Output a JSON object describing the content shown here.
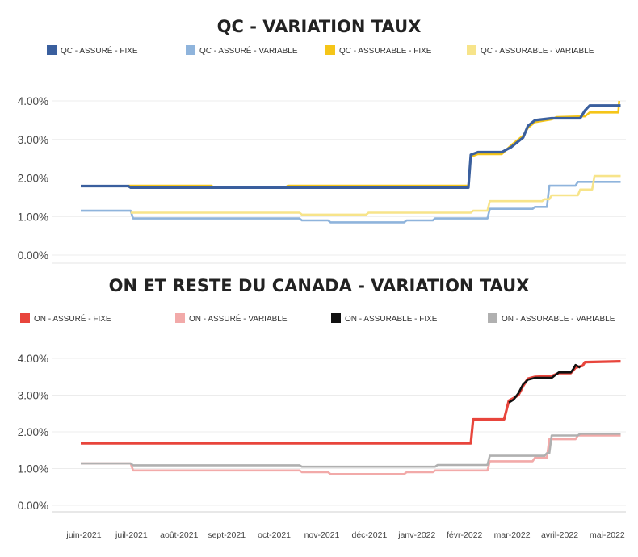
{
  "chart_data": [
    {
      "type": "line",
      "title": "QC - VARIATION TAUX",
      "xlabel": "",
      "ylabel": "",
      "ylim": [
        0,
        4.1
      ],
      "yticks": [
        "0.00%",
        "1.00%",
        "2.00%",
        "3.00%",
        "4.00%"
      ],
      "ytick_values": [
        0,
        1,
        2,
        3,
        4
      ],
      "xtick_labels": [
        "juin-2021",
        "juil-2021",
        "août-2021",
        "sept-2021",
        "oct-2021",
        "nov-2021",
        "déc-2021",
        "janv-2022",
        "févr-2022",
        "mar-2022",
        "avril-2022",
        "mai-2022"
      ],
      "grid": true,
      "legend_position": "top",
      "series": [
        {
          "name": "QC - ASSURÉ - FIXE",
          "color": "#3a5f9e",
          "points": [
            [
              0,
              1.79
            ],
            [
              1,
              1.79
            ],
            [
              1.05,
              1.75
            ],
            [
              8.15,
              1.75
            ],
            [
              8.2,
              2.6
            ],
            [
              8.35,
              2.67
            ],
            [
              8.85,
              2.67
            ],
            [
              9.05,
              2.8
            ],
            [
              9.15,
              2.9
            ],
            [
              9.3,
              3.05
            ],
            [
              9.4,
              3.35
            ],
            [
              9.55,
              3.5
            ],
            [
              9.9,
              3.55
            ],
            [
              10.5,
              3.55
            ],
            [
              10.6,
              3.75
            ],
            [
              10.7,
              3.88
            ],
            [
              11.35,
              3.88
            ]
          ]
        },
        {
          "name": "QC - ASSURÉ - VARIABLE",
          "color": "#8fb4dc",
          "points": [
            [
              0,
              1.15
            ],
            [
              1.05,
              1.15
            ],
            [
              1.1,
              0.95
            ],
            [
              4.6,
              0.95
            ],
            [
              4.65,
              0.9
            ],
            [
              5.2,
              0.9
            ],
            [
              5.25,
              0.85
            ],
            [
              6.8,
              0.85
            ],
            [
              6.85,
              0.9
            ],
            [
              7.4,
              0.9
            ],
            [
              7.45,
              0.95
            ],
            [
              8.55,
              0.95
            ],
            [
              8.6,
              1.2
            ],
            [
              9.5,
              1.2
            ],
            [
              9.55,
              1.25
            ],
            [
              9.8,
              1.25
            ],
            [
              9.85,
              1.8
            ],
            [
              10.4,
              1.8
            ],
            [
              10.45,
              1.9
            ],
            [
              11.35,
              1.9
            ]
          ]
        },
        {
          "name": "QC - ASSURABLE - FIXE",
          "color": "#f5c518",
          "points": [
            [
              1,
              1.8
            ],
            [
              2.75,
              1.8
            ],
            [
              2.8,
              1.75
            ],
            [
              4.3,
              1.75
            ],
            [
              4.35,
              1.8
            ],
            [
              8.15,
              1.8
            ],
            [
              8.2,
              2.55
            ],
            [
              8.35,
              2.62
            ],
            [
              8.85,
              2.62
            ],
            [
              9.05,
              2.85
            ],
            [
              9.3,
              3.1
            ],
            [
              9.4,
              3.3
            ],
            [
              9.55,
              3.45
            ],
            [
              9.9,
              3.52
            ],
            [
              10.0,
              3.58
            ],
            [
              10.6,
              3.6
            ],
            [
              10.7,
              3.7
            ],
            [
              11.3,
              3.7
            ],
            [
              11.32,
              4.0
            ]
          ]
        },
        {
          "name": "QC - ASSURABLE - VARIABLE",
          "color": "#f7e48a",
          "points": [
            [
              1.05,
              1.1
            ],
            [
              4.6,
              1.1
            ],
            [
              4.65,
              1.05
            ],
            [
              6.0,
              1.05
            ],
            [
              6.05,
              1.1
            ],
            [
              8.2,
              1.1
            ],
            [
              8.25,
              1.15
            ],
            [
              8.55,
              1.15
            ],
            [
              8.6,
              1.4
            ],
            [
              9.7,
              1.4
            ],
            [
              9.75,
              1.45
            ],
            [
              9.85,
              1.45
            ],
            [
              9.9,
              1.55
            ],
            [
              10.45,
              1.55
            ],
            [
              10.5,
              1.7
            ],
            [
              10.75,
              1.7
            ],
            [
              10.8,
              2.05
            ],
            [
              11.35,
              2.05
            ]
          ]
        }
      ]
    },
    {
      "type": "line",
      "title": "ON ET RESTE DU CANADA - VARIATION TAUX",
      "xlabel": "",
      "ylabel": "",
      "ylim": [
        0,
        4.1
      ],
      "yticks": [
        "0.00%",
        "1.00%",
        "2.00%",
        "3.00%",
        "4.00%"
      ],
      "ytick_values": [
        0,
        1,
        2,
        3,
        4
      ],
      "xtick_labels": [
        "juin-2021",
        "juil-2021",
        "août-2021",
        "sept-2021",
        "oct-2021",
        "nov-2021",
        "déc-2021",
        "janv-2022",
        "févr-2022",
        "mar-2022",
        "avril-2022",
        "mai-2022"
      ],
      "grid": true,
      "legend_position": "top",
      "series": [
        {
          "name": "ON - ASSURÉ - FIXE",
          "color": "#e8453c",
          "points": [
            [
              0,
              1.69
            ],
            [
              8.2,
              1.69
            ],
            [
              8.25,
              2.34
            ],
            [
              8.9,
              2.34
            ],
            [
              9.0,
              2.85
            ],
            [
              9.1,
              2.92
            ],
            [
              9.2,
              3.0
            ],
            [
              9.3,
              3.25
            ],
            [
              9.4,
              3.45
            ],
            [
              9.55,
              3.5
            ],
            [
              9.9,
              3.52
            ],
            [
              10.05,
              3.6
            ],
            [
              10.3,
              3.6
            ],
            [
              10.4,
              3.75
            ],
            [
              10.55,
              3.8
            ],
            [
              10.6,
              3.9
            ],
            [
              11.35,
              3.92
            ]
          ]
        },
        {
          "name": "ON - ASSURÉ - VARIABLE",
          "color": "#f2aaa9",
          "points": [
            [
              0,
              1.14
            ],
            [
              1.05,
              1.14
            ],
            [
              1.1,
              0.95
            ],
            [
              4.6,
              0.95
            ],
            [
              4.65,
              0.9
            ],
            [
              5.2,
              0.9
            ],
            [
              5.25,
              0.85
            ],
            [
              6.8,
              0.85
            ],
            [
              6.85,
              0.9
            ],
            [
              7.4,
              0.9
            ],
            [
              7.45,
              0.95
            ],
            [
              8.55,
              0.95
            ],
            [
              8.6,
              1.2
            ],
            [
              9.5,
              1.2
            ],
            [
              9.55,
              1.3
            ],
            [
              9.8,
              1.3
            ],
            [
              9.85,
              1.8
            ],
            [
              10.4,
              1.8
            ],
            [
              10.45,
              1.9
            ],
            [
              11.35,
              1.9
            ]
          ]
        },
        {
          "name": "ON - ASSURABLE - FIXE",
          "color": "#111111",
          "points": [
            [
              9.0,
              2.8
            ],
            [
              9.1,
              2.88
            ],
            [
              9.2,
              3.05
            ],
            [
              9.3,
              3.3
            ],
            [
              9.4,
              3.42
            ],
            [
              9.55,
              3.47
            ],
            [
              9.9,
              3.47
            ],
            [
              10.05,
              3.62
            ],
            [
              10.3,
              3.62
            ],
            [
              10.35,
              3.7
            ],
            [
              10.4,
              3.82
            ],
            [
              10.5,
              3.75
            ]
          ]
        },
        {
          "name": "ON - ASSURABLE - VARIABLE",
          "color": "#b0b0b0",
          "points": [
            [
              0,
              1.14
            ],
            [
              1.05,
              1.14
            ],
            [
              1.1,
              1.09
            ],
            [
              4.6,
              1.09
            ],
            [
              4.65,
              1.05
            ],
            [
              7.45,
              1.05
            ],
            [
              7.5,
              1.1
            ],
            [
              8.55,
              1.1
            ],
            [
              8.6,
              1.35
            ],
            [
              9.75,
              1.35
            ],
            [
              9.8,
              1.42
            ],
            [
              9.85,
              1.42
            ],
            [
              9.9,
              1.9
            ],
            [
              10.45,
              1.9
            ],
            [
              10.5,
              1.95
            ],
            [
              11.35,
              1.95
            ]
          ]
        }
      ]
    }
  ]
}
